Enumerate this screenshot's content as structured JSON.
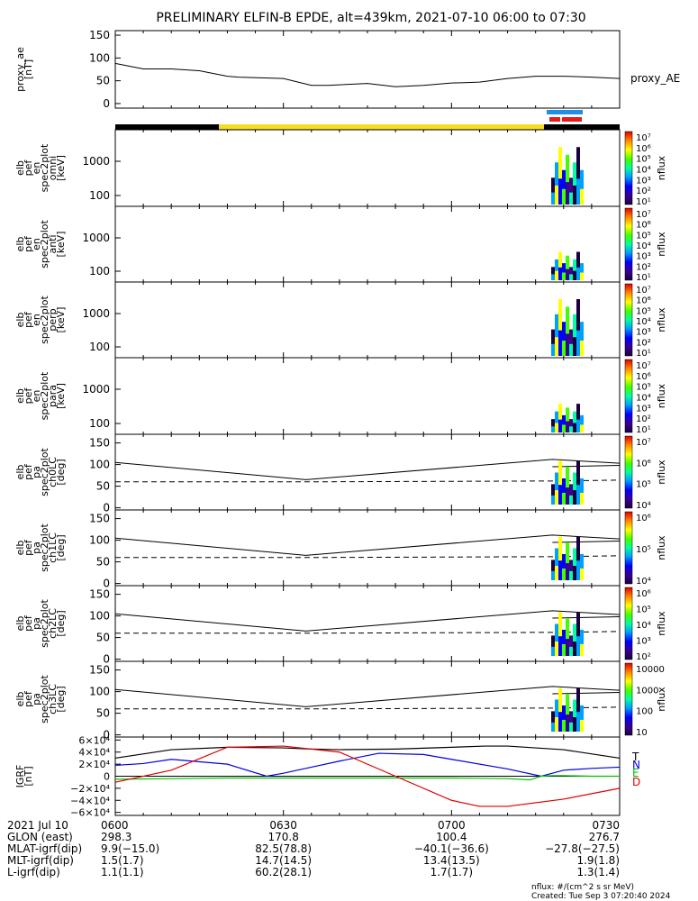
{
  "title": "PRELIMINARY ELFIN-B EPDE, alt=439km, 2021-07-10 06:00 to 07:30",
  "colors": {
    "ae": "#000000",
    "bar_black": "#000000",
    "bar_yellow": "#f5dd1f",
    "bar_blue": "#1f8fe6",
    "bar_red": "#e81a1a",
    "grf_t": "#000000",
    "grf_n": "#0000e0",
    "grf_e": "#00c000",
    "grf_d": "#e00000"
  },
  "chart_data": {
    "type": "line",
    "time_axis": {
      "start": "06:00",
      "end": "07:30",
      "tick_labels": [
        "0600",
        "0630",
        "0700",
        "0730"
      ]
    },
    "panels": [
      {
        "id": "proxy_ae",
        "ylabel": [
          "proxy_ae",
          "[nT]"
        ],
        "legend": "proxy_AE",
        "ylim": [
          -10,
          160
        ],
        "yticks": [
          "0",
          "50",
          "100",
          "150"
        ],
        "x": [
          0,
          5,
          10,
          15,
          20,
          22,
          30,
          35,
          38,
          45,
          50,
          55,
          60,
          65,
          70,
          75,
          80,
          85,
          90
        ],
        "values": [
          88,
          76,
          76,
          72,
          60,
          58,
          55,
          40,
          40,
          44,
          37,
          40,
          45,
          47,
          55,
          60,
          60,
          58,
          55
        ]
      },
      {
        "id": "en_omni",
        "ylabel": [
          "elb",
          "pef",
          "en",
          "spec2plot",
          "omni",
          "[keV]"
        ],
        "yticks": [
          "100",
          "1000"
        ],
        "cbar_title": "nflux"
      },
      {
        "id": "en_anti",
        "ylabel": [
          "elb",
          "pef",
          "en",
          "spec2plot",
          "anti",
          "[keV]"
        ],
        "yticks": [
          "100",
          "1000"
        ],
        "cbar_title": "nflux"
      },
      {
        "id": "en_perp",
        "ylabel": [
          "elb",
          "pef",
          "en",
          "spec2plot",
          "perp",
          "[keV]"
        ],
        "yticks": [
          "100",
          "1000"
        ],
        "cbar_title": "nflux"
      },
      {
        "id": "en_para",
        "ylabel": [
          "elb",
          "pef",
          "en",
          "spec2plot",
          "para",
          "[keV]"
        ],
        "yticks": [
          "100",
          "1000"
        ],
        "cbar_title": "nflux"
      },
      {
        "id": "pa_ch0",
        "ylabel": [
          "elb",
          "pef",
          "pa",
          "spec2plot",
          "ch0LC",
          "[deg]"
        ],
        "yticks": [
          "0",
          "50",
          "100",
          "150"
        ],
        "cbar_title": "nflux"
      },
      {
        "id": "pa_ch1",
        "ylabel": [
          "elb",
          "pef",
          "pa",
          "spec2plot",
          "ch1LC",
          "[deg]"
        ],
        "yticks": [
          "0",
          "50",
          "100",
          "150"
        ],
        "cbar_title": "nflux"
      },
      {
        "id": "pa_ch2",
        "ylabel": [
          "elb",
          "pef",
          "pa",
          "spec2plot",
          "ch2LC",
          "[deg]"
        ],
        "yticks": [
          "0",
          "50",
          "100",
          "150"
        ],
        "cbar_title": "nflux"
      },
      {
        "id": "pa_ch3",
        "ylabel": [
          "elb",
          "pef",
          "pa",
          "spec2plot",
          "ch3LC",
          "[deg]"
        ],
        "yticks": [
          "0",
          "50",
          "100",
          "150"
        ],
        "cbar_title": "nflux"
      },
      {
        "id": "igrf",
        "ylabel": [
          "IGRF",
          "[nT]"
        ],
        "ylim": [
          -65000,
          65000
        ],
        "yticks": [
          "6×10⁴",
          "4×10⁴",
          "2×10⁴",
          "0",
          "−2×10⁴",
          "−4×10⁴",
          "−6×10⁴"
        ],
        "series": [
          {
            "name": "T",
            "x": [
              0,
              10,
              20,
              30,
              35,
              40,
              50,
              60,
              66,
              70,
              80,
              90
            ],
            "values": [
              30000,
              44000,
              48000,
              47000,
              45000,
              44000,
              45000,
              48000,
              50000,
              50000,
              44000,
              30000
            ]
          },
          {
            "name": "N",
            "x": [
              0,
              5,
              10,
              20,
              27,
              30,
              35,
              40,
              47,
              55,
              60,
              70,
              76,
              78,
              80,
              85,
              90
            ],
            "values": [
              18000,
              21000,
              28000,
              20000,
              0,
              5000,
              15000,
              25000,
              38000,
              36000,
              28000,
              12000,
              0,
              5000,
              10000,
              13000,
              15000
            ]
          },
          {
            "name": "E",
            "x": [
              0,
              10,
              20,
              30,
              40,
              50,
              60,
              70,
              74,
              76,
              78,
              80,
              85,
              90
            ],
            "values": [
              -5000,
              -4000,
              -3000,
              -3000,
              -3000,
              -3000,
              -3000,
              -4000,
              -6000,
              0,
              1000,
              1000,
              0,
              0
            ]
          },
          {
            "name": "D",
            "x": [
              0,
              10,
              20,
              30,
              40,
              50,
              60,
              65,
              70,
              80,
              90
            ],
            "values": [
              -10000,
              10000,
              48000,
              50000,
              40000,
              0,
              -40000,
              -50000,
              -50000,
              -38000,
              -20000
            ]
          }
        ]
      }
    ],
    "colorbars": [
      {
        "labels": [
          "10⁷",
          "10⁶",
          "10⁵",
          "10⁴",
          "10³",
          "10²",
          "10¹"
        ],
        "title": "nflux"
      },
      {
        "labels": [
          "10⁷",
          "10⁶",
          "10⁵",
          "10⁴",
          "10³",
          "10²",
          "10¹"
        ],
        "title": "nflux"
      },
      {
        "labels": [
          "10⁷",
          "10⁶",
          "10⁵",
          "10⁴",
          "10³",
          "10²",
          "10¹"
        ],
        "title": "nflux"
      },
      {
        "labels": [
          "10⁷",
          "10⁶",
          "10⁵",
          "10⁴",
          "10³",
          "10²",
          "10¹"
        ],
        "title": "nflux"
      },
      {
        "labels": [
          "10⁷",
          "10⁶",
          "10⁵",
          "10⁴"
        ],
        "title": "nflux"
      },
      {
        "labels": [
          "10⁶",
          "10⁵",
          "10⁴"
        ],
        "title": "nflux"
      },
      {
        "labels": [
          "10⁶",
          "10⁵",
          "10⁴",
          "10³",
          "10²"
        ],
        "title": "nflux"
      },
      {
        "labels": [
          "10000",
          "1000",
          "100",
          "10"
        ],
        "title": "nflux"
      }
    ]
  },
  "ephemeris": {
    "rows": [
      {
        "label": "2021 Jul 10",
        "values": [
          "0600",
          "0630",
          "0700",
          "0730"
        ]
      },
      {
        "label": "GLON (east)",
        "values": [
          "298.3",
          "170.8",
          "100.4",
          "276.7"
        ]
      },
      {
        "label": "MLAT-igrf(dip)",
        "values": [
          "9.9(−15.0)",
          "82.5(78.8)",
          "−40.1(−36.6)",
          "−27.8(−27.5)"
        ]
      },
      {
        "label": "MLT-igrf(dip)",
        "values": [
          "1.5(1.7)",
          "14.7(14.5)",
          "13.4(13.5)",
          "1.9(1.8)"
        ]
      },
      {
        "label": "L-igrf(dip)",
        "values": [
          "1.1(1.1)",
          "60.2(28.1)",
          "1.7(1.7)",
          "1.3(1.4)"
        ]
      }
    ]
  },
  "footnote": "nflux: #/(cm^2 s sr MeV)",
  "created": "Created: Tue Sep  3 07:20:40 2024"
}
